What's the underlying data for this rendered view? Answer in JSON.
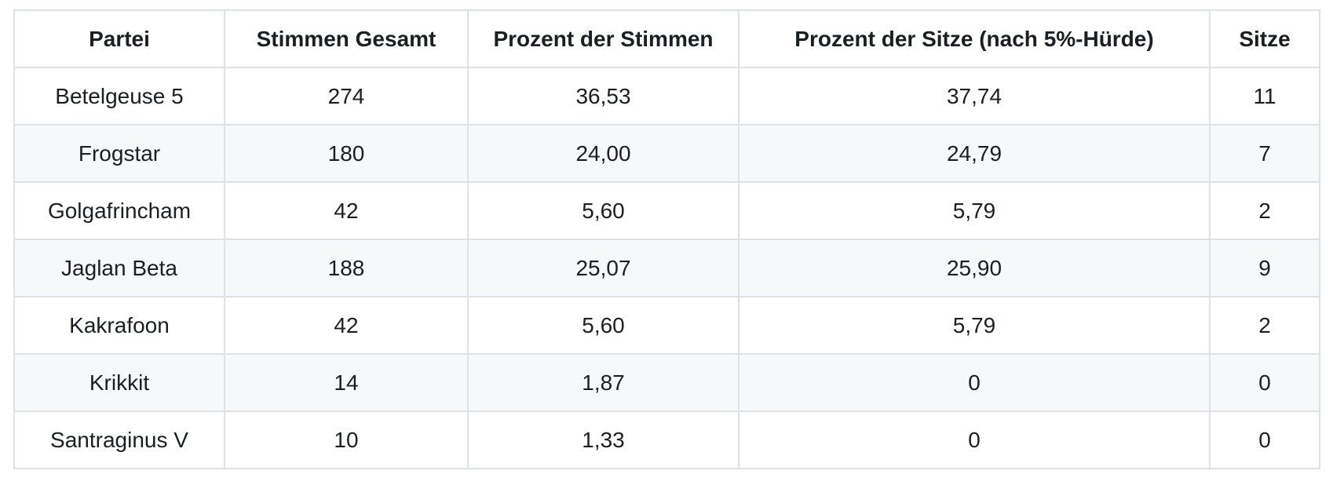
{
  "table": {
    "name": "election-results-table",
    "columns": [
      "Partei",
      "Stimmen Gesamt",
      "Prozent der Stimmen",
      "Prozent der Sitze (nach 5%-Hürde)",
      "Sitze"
    ],
    "rows": [
      {
        "partei": "Betelgeuse 5",
        "stimmen_gesamt": "274",
        "prozent_stimmen": "36,53",
        "prozent_sitze": "37,74",
        "sitze": "11"
      },
      {
        "partei": "Frogstar",
        "stimmen_gesamt": "180",
        "prozent_stimmen": "24,00",
        "prozent_sitze": "24,79",
        "sitze": "7"
      },
      {
        "partei": "Golgafrincham",
        "stimmen_gesamt": "42",
        "prozent_stimmen": "5,60",
        "prozent_sitze": "5,79",
        "sitze": "2"
      },
      {
        "partei": "Jaglan Beta",
        "stimmen_gesamt": "188",
        "prozent_stimmen": "25,07",
        "prozent_sitze": "25,90",
        "sitze": "9"
      },
      {
        "partei": "Kakrafoon",
        "stimmen_gesamt": "42",
        "prozent_stimmen": "5,60",
        "prozent_sitze": "5,79",
        "sitze": "2"
      },
      {
        "partei": "Krikkit",
        "stimmen_gesamt": "14",
        "prozent_stimmen": "1,87",
        "prozent_sitze": "0",
        "sitze": "0"
      },
      {
        "partei": "Santraginus V",
        "stimmen_gesamt": "10",
        "prozent_stimmen": "1,33",
        "prozent_sitze": "0",
        "sitze": "0"
      }
    ],
    "column_keys": [
      "partei",
      "stimmen_gesamt",
      "prozent_stimmen",
      "prozent_sitze",
      "sitze"
    ]
  },
  "colors": {
    "stripe_row_background": "#f6f8fa",
    "row_background": "#ffffff",
    "border": "#dee2e6",
    "text": "#1b1f24"
  }
}
